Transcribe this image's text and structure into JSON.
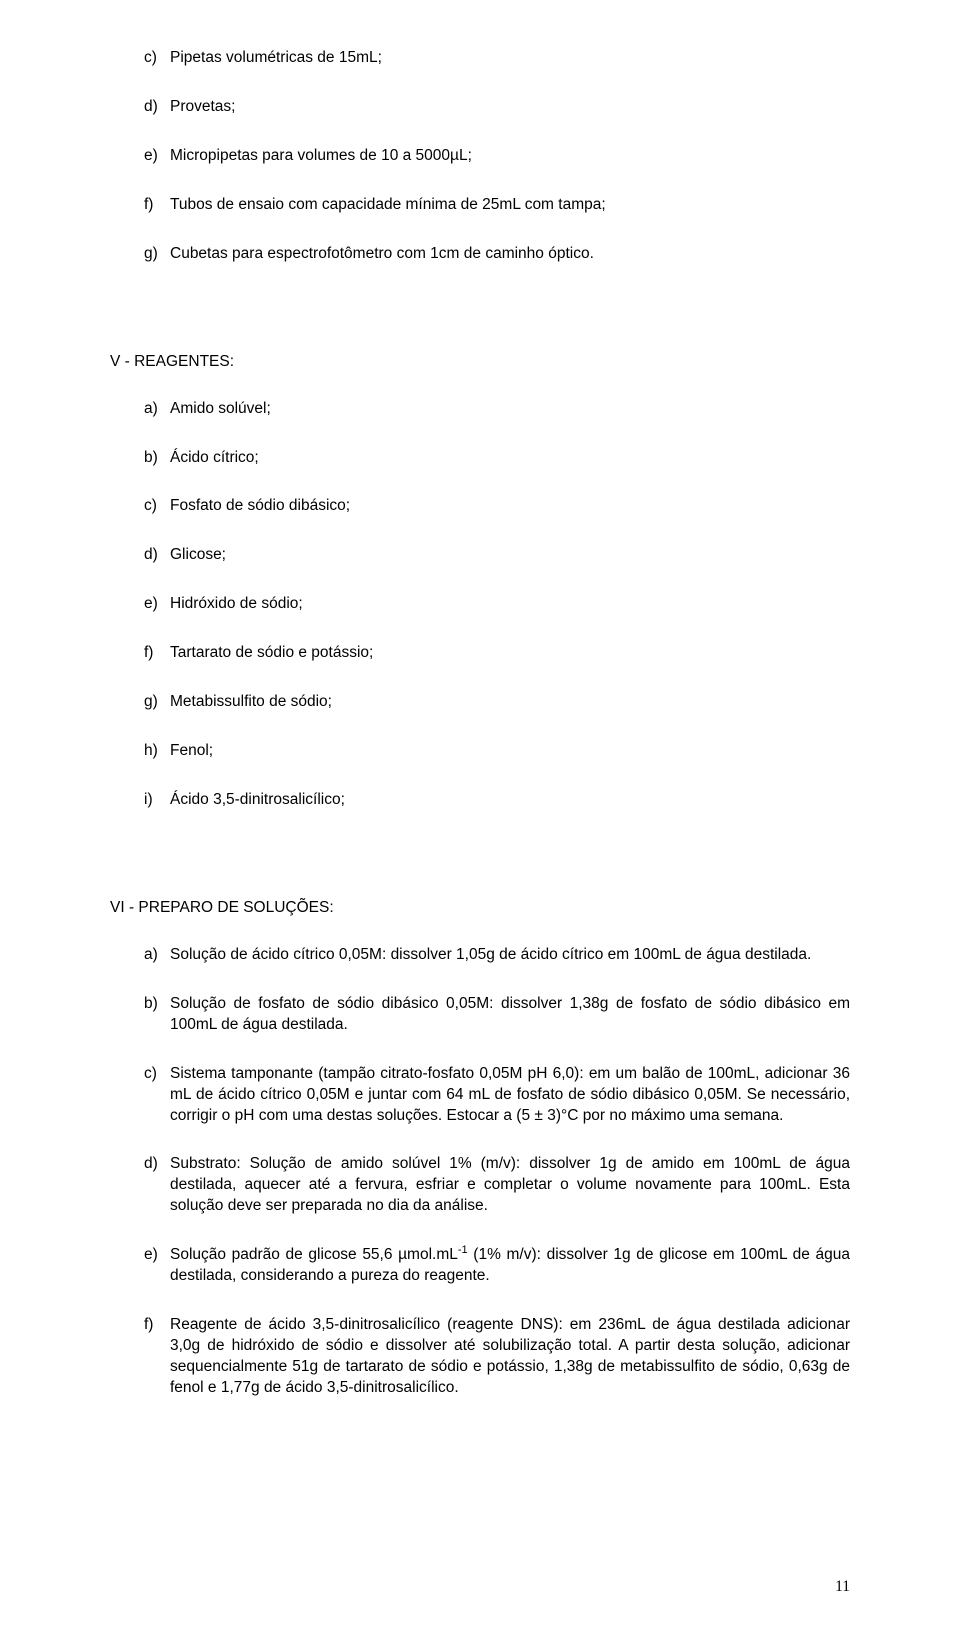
{
  "list1": {
    "c": {
      "marker": "c)",
      "text": "Pipetas volumétricas de 15mL;"
    },
    "d": {
      "marker": "d)",
      "text": "Provetas;"
    },
    "e": {
      "marker": "e)",
      "text": "Micropipetas para volumes de 10 a 5000µL;"
    },
    "f": {
      "marker": "f)",
      "text": "Tubos de ensaio com capacidade mínima de 25mL com tampa;"
    },
    "g": {
      "marker": "g)",
      "text": "Cubetas para espectrofotômetro com 1cm de caminho óptico."
    }
  },
  "heading_v": "V - REAGENTES:",
  "list2": {
    "a": {
      "marker": "a)",
      "text": "Amido solúvel;"
    },
    "b": {
      "marker": "b)",
      "text": "Ácido cítrico;"
    },
    "c": {
      "marker": "c)",
      "text": "Fosfato de sódio dibásico;"
    },
    "d": {
      "marker": "d)",
      "text": "Glicose;"
    },
    "e": {
      "marker": "e)",
      "text": "Hidróxido de sódio;"
    },
    "f": {
      "marker": "f)",
      "text": "Tartarato de sódio e potássio;"
    },
    "g": {
      "marker": "g)",
      "text": "Metabissulfito de sódio;"
    },
    "h": {
      "marker": "h)",
      "text": "Fenol;"
    },
    "i": {
      "marker": "i)",
      "text": "Ácido 3,5-dinitrosalicílico;"
    }
  },
  "heading_vi": "VI - PREPARO DE SOLUÇÕES:",
  "list3": {
    "a": {
      "marker": "a)",
      "text": "Solução de ácido cítrico 0,05M: dissolver 1,05g de ácido cítrico em 100mL de água destilada."
    },
    "b": {
      "marker": "b)",
      "text": "Solução de fosfato de sódio dibásico 0,05M: dissolver 1,38g de fosfato de sódio dibásico em 100mL de água destilada."
    },
    "c": {
      "marker": "c)",
      "text": " Sistema tamponante (tampão citrato-fosfato 0,05M pH 6,0): em um balão de 100mL, adicionar 36 mL de ácido cítrico 0,05M e juntar com 64 mL de fosfato de sódio dibásico 0,05M. Se necessário, corrigir o pH com uma destas soluções. Estocar a (5 ± 3)°C por no máximo uma semana."
    },
    "d": {
      "marker": "d)",
      "text": "Substrato: Solução de amido solúvel 1% (m/v): dissolver 1g de amido em 100mL de água destilada, aquecer até a fervura, esfriar e completar o volume novamente para 100mL. Esta solução deve ser preparada no dia da análise."
    },
    "e": {
      "marker": "e)",
      "pre": "Solução padrão de glicose 55,6 µmol.mL",
      "sup": "-1",
      "post": "  (1% m/v): dissolver 1g de glicose em 100mL de água destilada, considerando a pureza do reagente."
    },
    "f": {
      "marker": "f)",
      "text": "Reagente de ácido 3,5-dinitrosalicílico (reagente DNS): em 236mL de água destilada adicionar 3,0g de hidróxido de sódio e dissolver até solubilização total. A partir desta solução, adicionar sequencialmente 51g de tartarato de sódio e potássio, 1,38g de metabissulfito de sódio, 0,63g de fenol e 1,77g de ácido 3,5-dinitrosalicílico."
    }
  },
  "page_number": "11"
}
